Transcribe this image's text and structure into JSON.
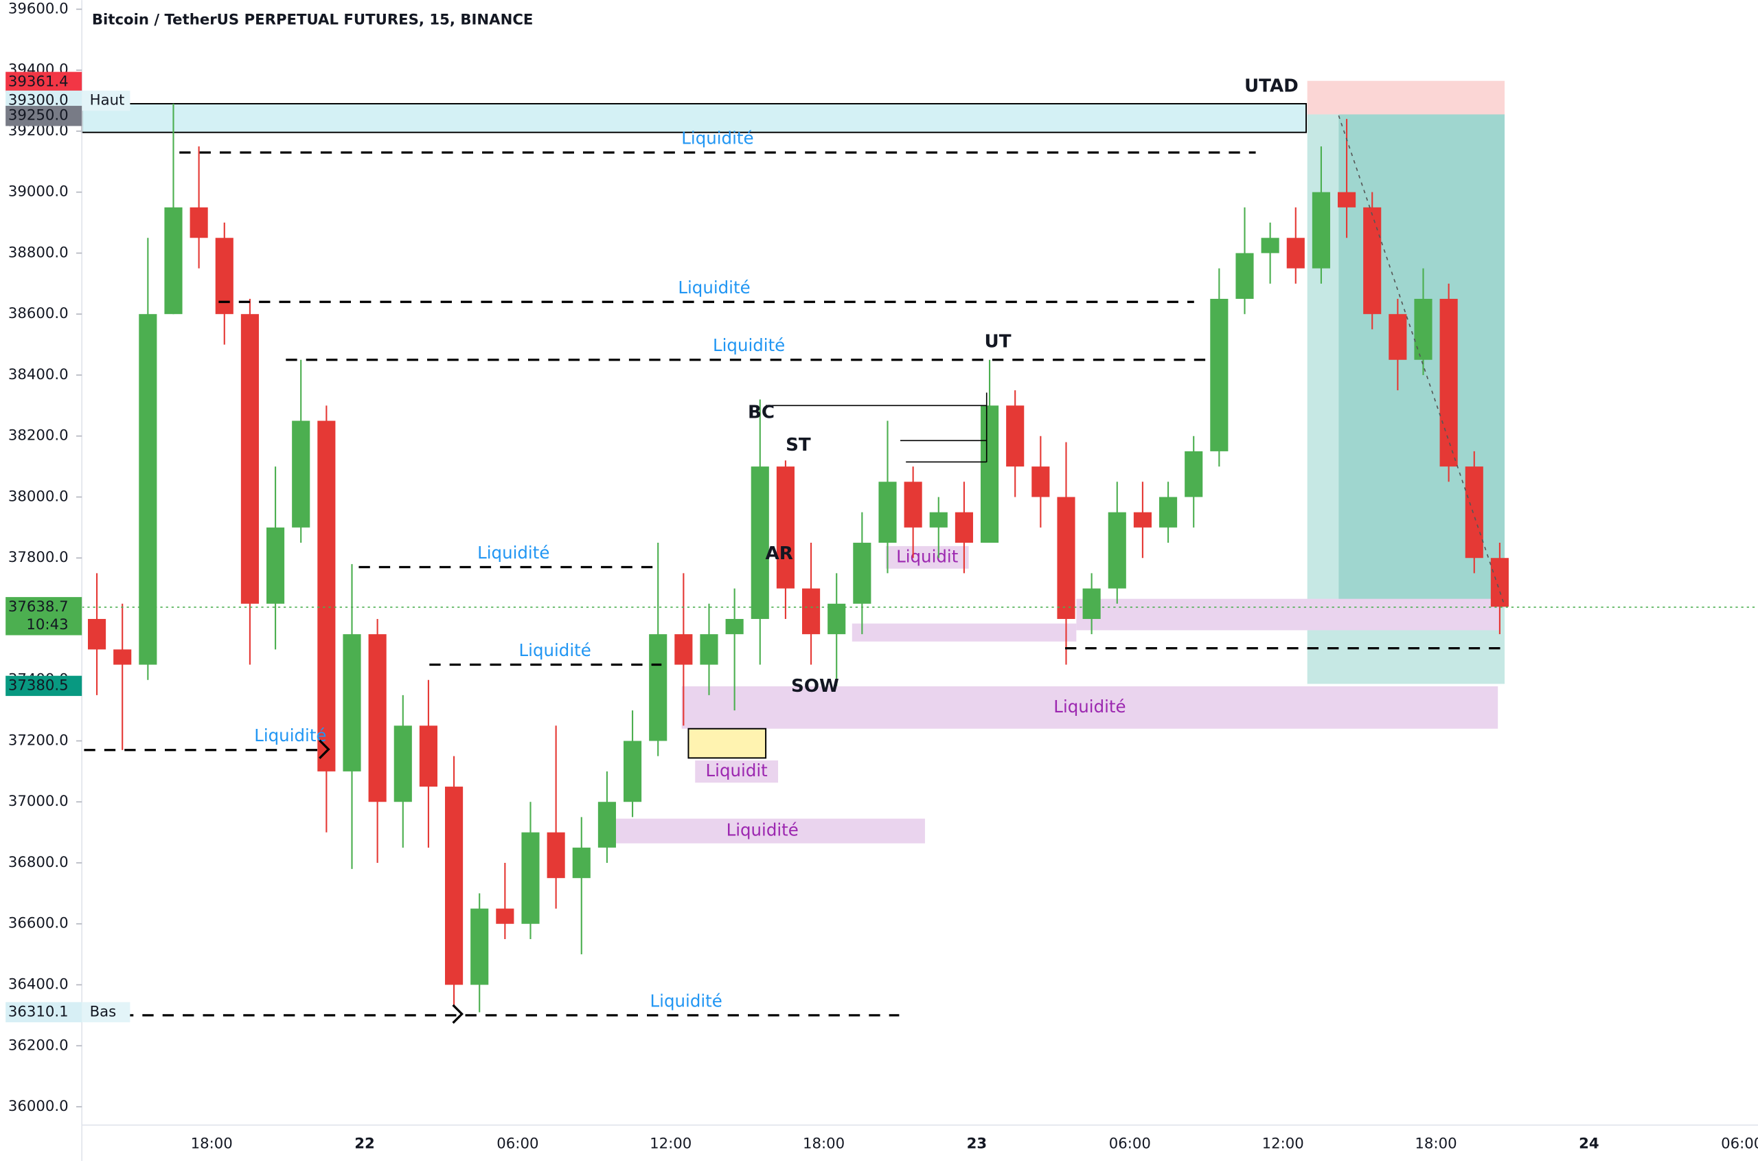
{
  "chart_data": {
    "type": "candlestick",
    "title": "Bitcoin / TetherUS PERPETUAL FUTURES, 15, BINANCE",
    "up_color": "#4caf50",
    "down_color": "#e53935",
    "ylim": [
      35940,
      39630
    ],
    "yticks": [
      {
        "value": 36000,
        "label": "36000.0"
      },
      {
        "value": 36200,
        "label": "36200.0"
      },
      {
        "value": 36400,
        "label": "36400.0"
      },
      {
        "value": 36600,
        "label": "36600.0"
      },
      {
        "value": 36800,
        "label": "36800.0"
      },
      {
        "value": 37000,
        "label": "37000.0"
      },
      {
        "value": 37200,
        "label": "37200.0"
      },
      {
        "value": 37400,
        "label": "37400.0"
      },
      {
        "value": 37600,
        "label": "37600.0"
      },
      {
        "value": 37800,
        "label": "37800.0"
      },
      {
        "value": 38000,
        "label": "38000.0"
      },
      {
        "value": 38200,
        "label": "38200.0"
      },
      {
        "value": 38400,
        "label": "38400.0"
      },
      {
        "value": 38600,
        "label": "38600.0"
      },
      {
        "value": 38800,
        "label": "38800.0"
      },
      {
        "value": 39000,
        "label": "39000.0"
      },
      {
        "value": 39200,
        "label": "39200.0"
      },
      {
        "value": 39400,
        "label": "39400.0"
      },
      {
        "value": 39600,
        "label": "39600.0"
      }
    ],
    "grid": false,
    "categories": [
      null,
      null,
      null,
      null,
      null,
      "18:00",
      null,
      null,
      null,
      null,
      null,
      "22",
      null,
      null,
      null,
      null,
      null,
      "06:00",
      null,
      null,
      null,
      null,
      null,
      "12:00",
      null,
      null,
      null,
      null,
      null,
      "18:00",
      null,
      null,
      null,
      null,
      null,
      "23",
      null,
      null,
      null,
      null,
      null,
      "06:00",
      null,
      null,
      null,
      null,
      null,
      "12:00",
      null,
      null,
      null,
      null,
      null,
      "18:00",
      null,
      null,
      null,
      null,
      null,
      "24",
      null,
      null,
      null,
      null,
      null,
      "06:00"
    ],
    "open": [
      37600,
      37500,
      37450,
      38600,
      38950,
      38850,
      38600,
      37650,
      37900,
      38250,
      37100,
      37550,
      37000,
      37250,
      37050,
      36400,
      36650,
      36600,
      36900,
      36750,
      36850,
      37000,
      37200,
      37550,
      37450,
      37550,
      37600,
      38100,
      37700,
      37550,
      37650,
      37850,
      38050,
      37900,
      37950,
      37850,
      38300,
      38100,
      38000,
      37600,
      37700,
      37950,
      37900,
      38000,
      38150,
      38650,
      38800,
      38850,
      38750,
      39000,
      38950,
      38600,
      38450,
      38650,
      38100,
      37800,
      null,
      null,
      null,
      null,
      null,
      null,
      null,
      null,
      null,
      null
    ],
    "high": [
      37750,
      37650,
      38850,
      39290,
      39150,
      38900,
      38650,
      38100,
      38450,
      38300,
      37780,
      37600,
      37350,
      37400,
      37150,
      36700,
      36800,
      37000,
      37250,
      36950,
      37100,
      37300,
      37850,
      37750,
      37650,
      37700,
      38320,
      38120,
      37850,
      37750,
      37950,
      38250,
      38100,
      38000,
      38050,
      38450,
      38350,
      38200,
      38180,
      37750,
      38050,
      38050,
      38050,
      38200,
      38750,
      38950,
      38900,
      38950,
      39150,
      39240,
      39000,
      38650,
      38750,
      38700,
      38150,
      37850,
      null,
      null,
      null,
      null,
      null,
      null,
      null,
      null,
      null,
      null
    ],
    "low": [
      37350,
      37170,
      37400,
      38600,
      38750,
      38500,
      37450,
      37500,
      37850,
      36900,
      36780,
      36800,
      36850,
      36850,
      36330,
      36310,
      36550,
      36550,
      36650,
      36500,
      36800,
      36950,
      37150,
      37250,
      37350,
      37300,
      37450,
      37600,
      37450,
      37380,
      37550,
      37750,
      37800,
      37800,
      37750,
      37850,
      38000,
      37900,
      37450,
      37550,
      37650,
      37800,
      37850,
      37900,
      38100,
      38600,
      38700,
      38700,
      38700,
      38850,
      38550,
      38350,
      38400,
      38050,
      37750,
      37550,
      null,
      null,
      null,
      null,
      null,
      null,
      null,
      null,
      null,
      null
    ],
    "close": [
      37500,
      37450,
      38600,
      38950,
      38850,
      38600,
      37650,
      37900,
      38250,
      37100,
      37550,
      37000,
      37250,
      37050,
      36400,
      36650,
      36600,
      36900,
      36750,
      36850,
      37000,
      37200,
      37550,
      37450,
      37550,
      37600,
      38100,
      37700,
      37550,
      37650,
      37850,
      38050,
      37900,
      37950,
      37850,
      38300,
      38100,
      38000,
      37600,
      37700,
      37950,
      37900,
      38000,
      38150,
      38650,
      38800,
      38850,
      38750,
      39000,
      38950,
      38600,
      38450,
      38650,
      38100,
      37800,
      37640,
      null,
      null,
      null,
      null,
      null,
      null,
      null,
      null,
      null,
      null
    ],
    "liquidity_lines": [
      {
        "label": "Liquidité",
        "value": 39130
      },
      {
        "label": "Liquidité",
        "value": 38640
      },
      {
        "label": "Liquidité",
        "value": 38450
      },
      {
        "label": "Liquidité",
        "value": 37770
      },
      {
        "label": "Liquidité",
        "value": 37450
      },
      {
        "label": "Liquidité",
        "value": 37170
      },
      {
        "label": "Liquidité",
        "value": 36300
      },
      {
        "value": 37504
      }
    ],
    "zones": [
      {
        "top": 39290,
        "bottom": 39196,
        "color": "#d4f1f5"
      },
      {
        "top": 39365,
        "bottom": 39255,
        "color": "#fbd6d5"
      },
      {
        "top": 39255,
        "bottom": 37387,
        "color": "#c6e8e4"
      },
      {
        "top": 39255,
        "bottom": 37660,
        "color": "#9fd6cf"
      },
      {
        "label": "Liquidité",
        "top": 37379,
        "bottom": 37240,
        "color": "#ead4ee"
      },
      {
        "label": "Liquidit",
        "top": 37136,
        "bottom": 37063,
        "color": "#ead4ee"
      },
      {
        "label": "Liquidité",
        "top": 36945,
        "bottom": 36864,
        "color": "#ead4ee"
      },
      {
        "label": "Liquidit",
        "top": 37839,
        "bottom": 37765,
        "color": "#ead4ee"
      },
      {
        "top": 37585,
        "bottom": 37526,
        "color": "#ead4ee"
      },
      {
        "top": 37666,
        "bottom": 37563,
        "color": "#ead4ee"
      },
      {
        "top": 37240,
        "bottom": 37144,
        "color": "#fff3b0"
      }
    ],
    "structure_lines": [
      38300,
      38185,
      38115
    ],
    "events": [
      "UTAD",
      "UT",
      "BC",
      "ST",
      "AR",
      "SOW"
    ],
    "price_labels": [
      {
        "value": 39361.4,
        "label": "39361.4",
        "color": "#f23645",
        "text_color": "#ffffff"
      },
      {
        "value": 39300,
        "label": "39300.0",
        "tag": "Haut",
        "color": "#d7eff5",
        "text_color": "#131722"
      },
      {
        "value": 39250,
        "label": "39250.0",
        "color": "#787b86",
        "text_color": "#ffffff"
      },
      {
        "value": 37638.7,
        "label": "37638.7",
        "countdown": "10:43",
        "color": "#4caf50",
        "text_color": "#ffffff"
      },
      {
        "value": 37380.5,
        "label": "37380.5",
        "color": "#089981",
        "text_color": "#ffffff"
      },
      {
        "value": 36310.1,
        "label": "36310.1",
        "tag": "Bas",
        "color": "#d7eff5",
        "text_color": "#131722"
      }
    ]
  }
}
